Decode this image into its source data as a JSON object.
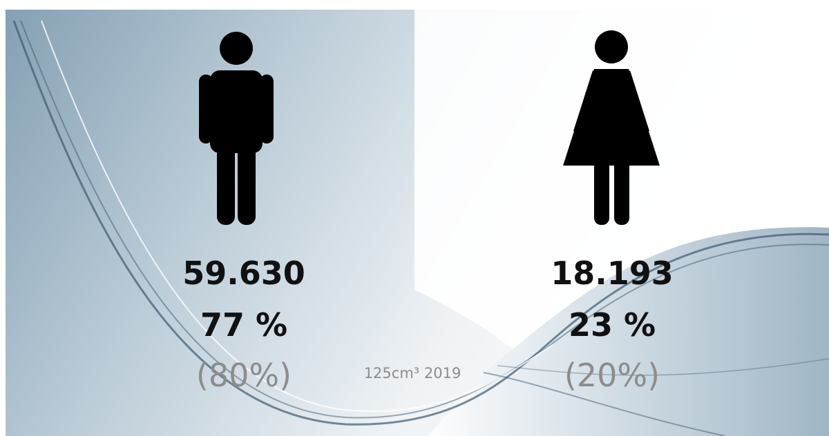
{
  "caption": "125cm³ 2019",
  "groups": [
    {
      "count": "59.630",
      "share": "77 %",
      "previous": "(80%)"
    },
    {
      "count": "18.193",
      "share": "23 %",
      "previous": "(20%)"
    }
  ]
}
